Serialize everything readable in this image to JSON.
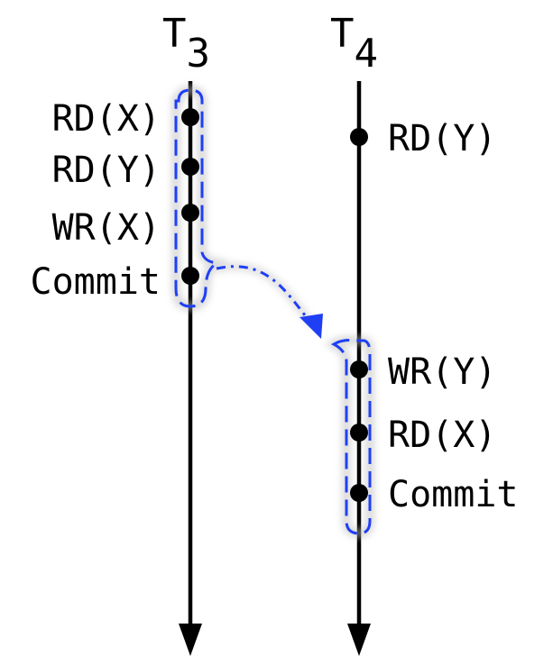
{
  "transactions": [
    {
      "name": "T",
      "subscript": "3"
    },
    {
      "name": "T",
      "subscript": "4"
    }
  ],
  "t3_ops": [
    "RD(X)",
    "RD(Y)",
    "WR(X)",
    "Commit"
  ],
  "t4_ops": [
    "RD(Y)",
    "WR(Y)",
    "RD(X)",
    "Commit"
  ],
  "colors": {
    "line": "#000000",
    "group_outline": "#1f3ff5",
    "dependency_arrow": "#1f3ff5"
  }
}
